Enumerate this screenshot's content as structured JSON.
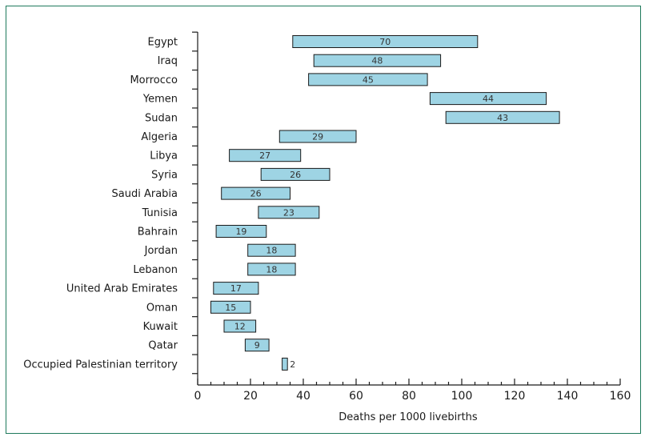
{
  "chart_data": {
    "type": "bar",
    "orientation": "horizontal",
    "title": "",
    "xlabel": "Deaths per 1000 livebirths",
    "ylabel": "",
    "xlim": [
      0,
      160
    ],
    "xticks": [
      "0",
      "20",
      "40",
      "60",
      "80",
      "100",
      "120",
      "140",
      "160"
    ],
    "grid": false,
    "legend": "none",
    "bar_color": "#9ed4e4",
    "bar_edge_color": "#1a1a1a",
    "categories": [
      "Egypt",
      "Iraq",
      "Morrocco",
      "Yemen",
      "Sudan",
      "Algeria",
      "Libya",
      "Syria",
      "Saudi Arabia",
      "Tunisia",
      "Bahrain",
      "Jordan",
      "Lebanon",
      "United Arab Emirates",
      "Oman",
      "Kuwait",
      "Qatar",
      "Occupied Palestinian territory"
    ],
    "start": [
      36,
      44,
      42,
      88,
      94,
      31,
      12,
      24,
      9,
      23,
      7,
      19,
      19,
      6,
      5,
      10,
      18,
      32
    ],
    "end": [
      106,
      92,
      87,
      132,
      137,
      60,
      39,
      50,
      35,
      46,
      26,
      37,
      37,
      23,
      20,
      22,
      27,
      34
    ],
    "labels": [
      "70",
      "48",
      "45",
      "44",
      "43",
      "29",
      "27",
      "26",
      "26",
      "23",
      "19",
      "18",
      "18",
      "17",
      "15",
      "12",
      "9",
      "2"
    ]
  }
}
